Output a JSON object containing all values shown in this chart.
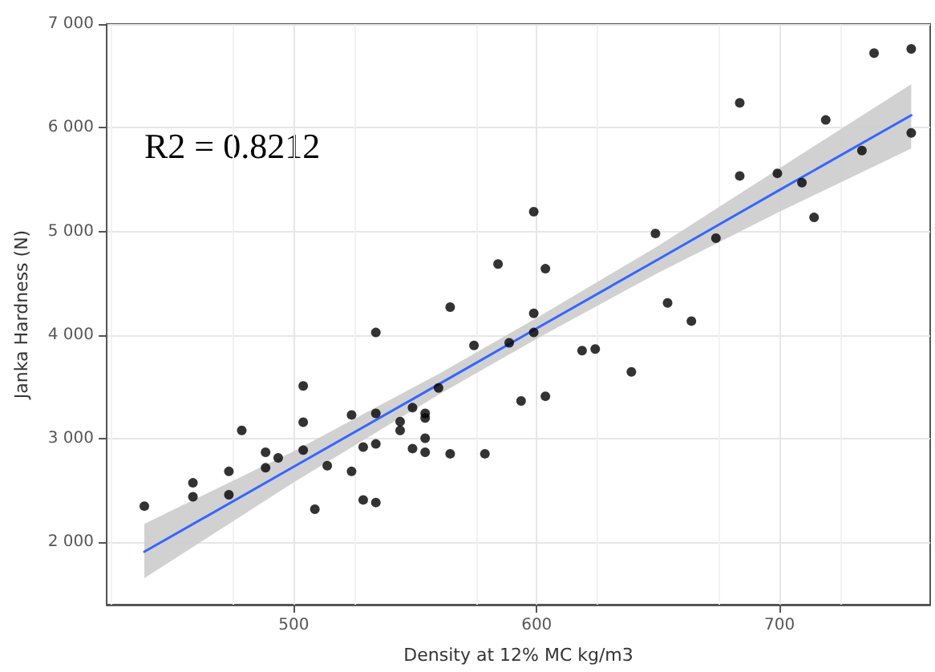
{
  "chart_data": {
    "type": "scatter",
    "xlabel": "Density at 12% MC kg/m3",
    "ylabel": "Janka Hardness (N)",
    "annotations": [
      "R2 = 0.8212"
    ],
    "xlim": [
      423,
      762
    ],
    "ylim": [
      1400,
      7000
    ],
    "xticks": [
      500,
      600,
      700
    ],
    "yticks": [
      {
        "value": 2000,
        "label": "2 000"
      },
      {
        "value": 3000,
        "label": "3 000"
      },
      {
        "value": 4000,
        "label": "4 000"
      },
      {
        "value": 5000,
        "label": "5 000"
      },
      {
        "value": 6000,
        "label": "6 000"
      },
      {
        "value": 7000,
        "label": "7 000"
      }
    ],
    "grid": true,
    "marker": "circle",
    "series": [
      {
        "color": "#000000",
        "x": [
          438.5,
          458.5,
          458.5,
          473.3,
          473.3,
          478.6,
          488.4,
          488.4,
          493.6,
          503.9,
          503.9,
          503.9,
          508.7,
          513.8,
          523.8,
          523.8,
          528.6,
          533.8,
          533.8,
          533.8,
          528.6,
          533.8,
          543.8,
          543.8,
          548.9,
          548.9,
          554.1,
          554.1,
          554.1,
          554.1,
          559.6,
          564.4,
          564.4,
          574.2,
          578.7,
          584.1,
          588.7,
          593.6,
          598.8,
          598.8,
          598.8,
          603.6,
          603.6,
          618.7,
          624.1,
          639.0,
          648.9,
          653.9,
          663.7,
          673.8,
          683.6,
          683.6,
          699.1,
          709.2,
          714.2,
          719.0,
          733.9,
          738.9,
          754.2,
          754.2
        ],
        "values": [
          2350,
          2575,
          2440,
          2685,
          2460,
          3080,
          2870,
          2720,
          2815,
          3510,
          3160,
          2890,
          2320,
          2740,
          3230,
          2685,
          2920,
          4025,
          3245,
          2950,
          2410,
          2385,
          3165,
          3080,
          3300,
          2905,
          3245,
          3200,
          3005,
          2870,
          3490,
          4270,
          2855,
          3900,
          2855,
          4685,
          3925,
          3365,
          5190,
          4210,
          4025,
          4640,
          3410,
          3850,
          3865,
          3645,
          4980,
          4310,
          4135,
          4935,
          6240,
          5535,
          5560,
          5470,
          5135,
          6075,
          5780,
          6720,
          6760,
          5950
        ]
      },
      {
        "type": "line",
        "color": "#3366ff",
        "marker": "none",
        "x": [
          438.5,
          500,
          560,
          600,
          650,
          700,
          754.2
        ],
        "values": [
          1910,
          2730,
          3530,
          4065,
          4730,
          5400,
          6120
        ],
        "lower": [
          1655,
          2580,
          3430,
          3965,
          4600,
          5190,
          5800
        ],
        "upper": [
          2180,
          2880,
          3630,
          4165,
          4860,
          5610,
          6420
        ]
      }
    ]
  }
}
